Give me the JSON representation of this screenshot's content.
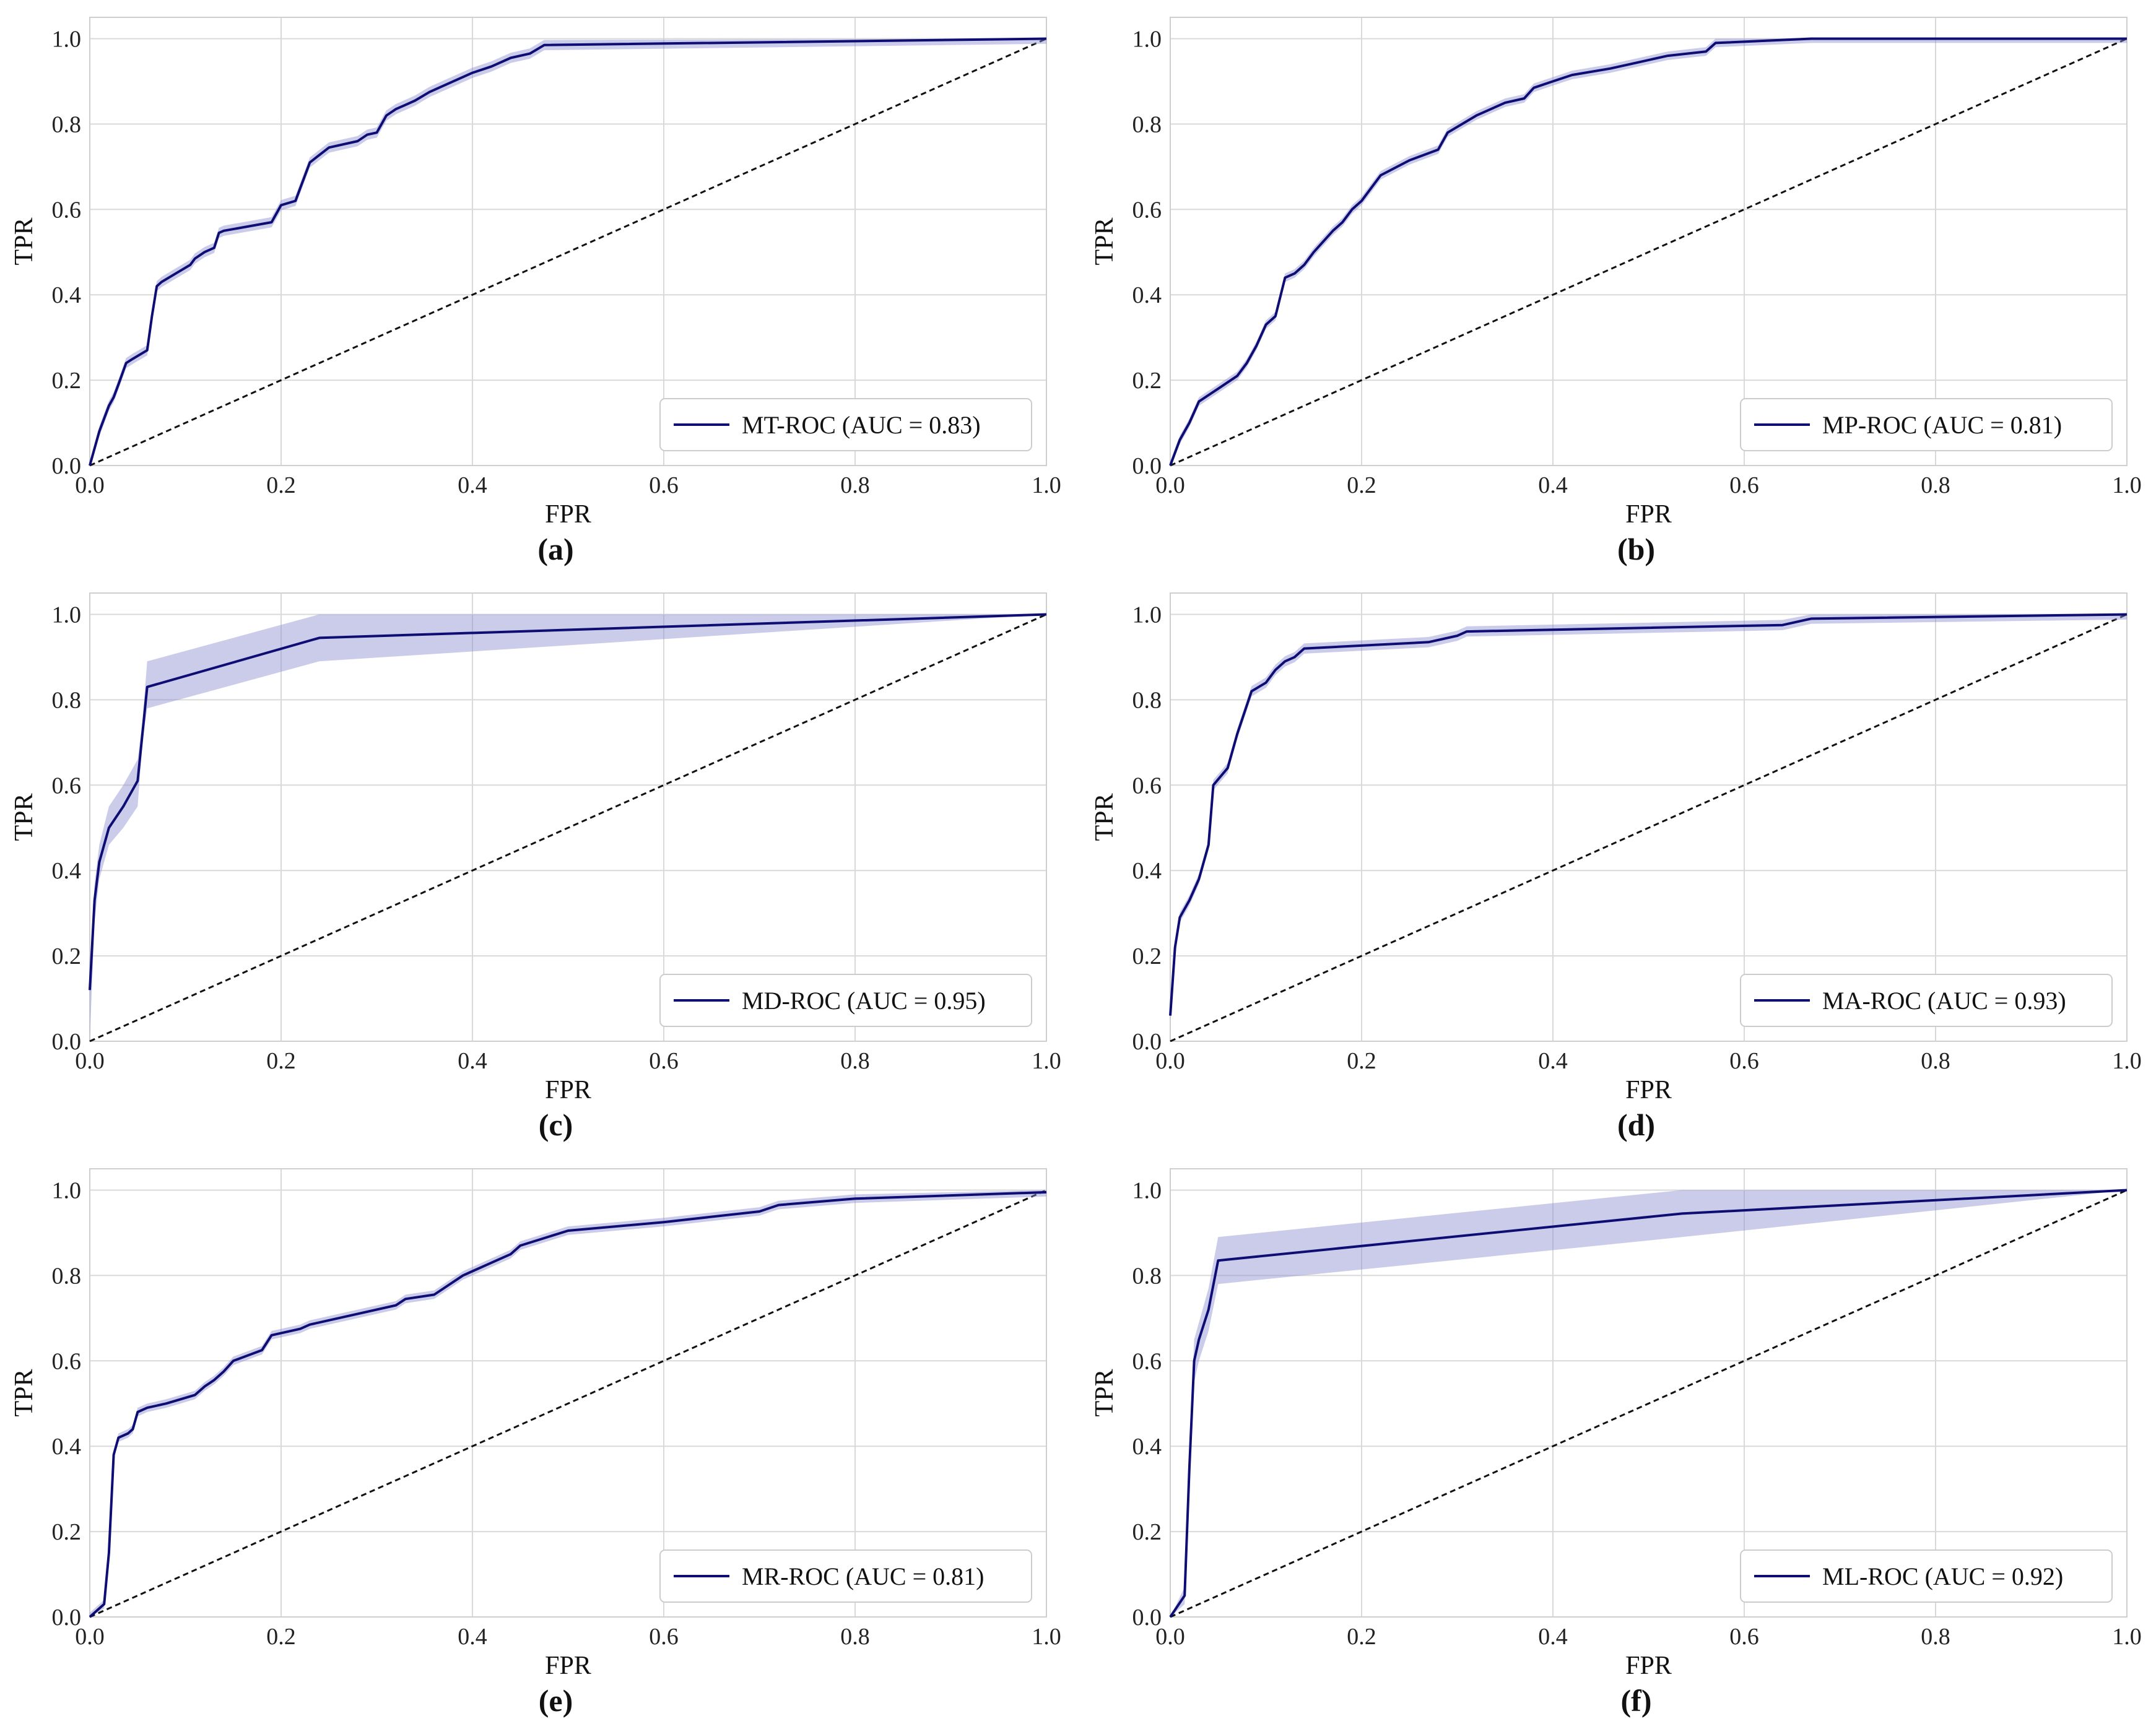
{
  "colors": {
    "line": "#0d0d73",
    "band": "#8c8cd1",
    "diagonal": "#111111"
  },
  "chart_data": [
    {
      "type": "line",
      "caption": "(a)",
      "xlabel": "FPR",
      "ylabel": "TPR",
      "xlim": [
        0,
        1
      ],
      "ylim": [
        0,
        1.05
      ],
      "grid": true,
      "legend_position": "lower-right",
      "xticks": [
        "0.0",
        "0.2",
        "0.4",
        "0.6",
        "0.8",
        "1.0"
      ],
      "yticks": [
        "0.0",
        "0.2",
        "0.4",
        "0.6",
        "0.8",
        "1.0"
      ],
      "series": [
        {
          "name": "MT-ROC (AUC = 0.83)",
          "x": [
            0,
            0.01,
            0.02,
            0.025,
            0.03,
            0.038,
            0.045,
            0.06,
            0.065,
            0.07,
            0.075,
            0.09,
            0.105,
            0.11,
            0.12,
            0.13,
            0.135,
            0.14,
            0.19,
            0.2,
            0.215,
            0.22,
            0.23,
            0.25,
            0.28,
            0.29,
            0.3,
            0.31,
            0.32,
            0.33,
            0.34,
            0.355,
            0.37,
            0.4,
            0.42,
            0.44,
            0.46,
            0.475,
            1.0
          ],
          "y": [
            0,
            0.08,
            0.14,
            0.16,
            0.19,
            0.24,
            0.25,
            0.27,
            0.35,
            0.42,
            0.43,
            0.45,
            0.47,
            0.485,
            0.5,
            0.51,
            0.545,
            0.55,
            0.57,
            0.61,
            0.62,
            0.65,
            0.71,
            0.745,
            0.76,
            0.775,
            0.78,
            0.82,
            0.835,
            0.845,
            0.855,
            0.875,
            0.89,
            0.92,
            0.935,
            0.955,
            0.965,
            0.985,
            1.0
          ],
          "band": 0.012
        }
      ]
    },
    {
      "type": "line",
      "caption": "(b)",
      "xlabel": "FPR",
      "ylabel": "TPR",
      "xlim": [
        0,
        1
      ],
      "ylim": [
        0,
        1.05
      ],
      "grid": true,
      "legend_position": "lower-right",
      "xticks": [
        "0.0",
        "0.2",
        "0.4",
        "0.6",
        "0.8",
        "1.0"
      ],
      "yticks": [
        "0.0",
        "0.2",
        "0.4",
        "0.6",
        "0.8",
        "1.0"
      ],
      "series": [
        {
          "name": "MP-ROC (AUC = 0.81)",
          "x": [
            0,
            0.01,
            0.02,
            0.03,
            0.05,
            0.07,
            0.08,
            0.09,
            0.1,
            0.11,
            0.12,
            0.13,
            0.14,
            0.15,
            0.17,
            0.18,
            0.19,
            0.2,
            0.21,
            0.22,
            0.25,
            0.28,
            0.29,
            0.32,
            0.33,
            0.35,
            0.37,
            0.38,
            0.4,
            0.42,
            0.46,
            0.49,
            0.52,
            0.56,
            0.57,
            0.67,
            1.0
          ],
          "y": [
            0,
            0.06,
            0.1,
            0.15,
            0.18,
            0.21,
            0.24,
            0.28,
            0.33,
            0.35,
            0.44,
            0.45,
            0.47,
            0.5,
            0.55,
            0.57,
            0.6,
            0.62,
            0.65,
            0.68,
            0.715,
            0.74,
            0.78,
            0.82,
            0.83,
            0.85,
            0.86,
            0.885,
            0.9,
            0.915,
            0.93,
            0.945,
            0.96,
            0.97,
            0.99,
            1.0,
            1.0
          ],
          "band": 0.01
        }
      ]
    },
    {
      "type": "line",
      "caption": "(c)",
      "xlabel": "FPR",
      "ylabel": "TPR",
      "xlim": [
        0,
        1
      ],
      "ylim": [
        0,
        1.05
      ],
      "grid": true,
      "legend_position": "lower-right",
      "xticks": [
        "0.0",
        "0.2",
        "0.4",
        "0.6",
        "0.8",
        "1.0"
      ],
      "yticks": [
        "0.0",
        "0.2",
        "0.4",
        "0.6",
        "0.8",
        "1.0"
      ],
      "series": [
        {
          "name": "MD-ROC (AUC = 0.95)",
          "x": [
            0,
            0.005,
            0.01,
            0.02,
            0.035,
            0.05,
            0.055,
            0.06,
            0.24,
            1.0
          ],
          "y": [
            0.12,
            0.33,
            0.42,
            0.5,
            0.55,
            0.61,
            0.72,
            0.83,
            0.945,
            1.0
          ],
          "band_lower": [
            0.0,
            0.28,
            0.38,
            0.46,
            0.5,
            0.55,
            0.7,
            0.78,
            0.89,
            1.0
          ],
          "band_upper": [
            0.18,
            0.37,
            0.46,
            0.55,
            0.6,
            0.66,
            0.75,
            0.89,
            1.0,
            1.0
          ]
        }
      ]
    },
    {
      "type": "line",
      "caption": "(d)",
      "xlabel": "FPR",
      "ylabel": "TPR",
      "xlim": [
        0,
        1
      ],
      "ylim": [
        0,
        1.05
      ],
      "grid": true,
      "legend_position": "lower-right",
      "xticks": [
        "0.0",
        "0.2",
        "0.4",
        "0.6",
        "0.8",
        "1.0"
      ],
      "yticks": [
        "0.0",
        "0.2",
        "0.4",
        "0.6",
        "0.8",
        "1.0"
      ],
      "series": [
        {
          "name": "MA-ROC (AUC = 0.93)",
          "x": [
            0,
            0.005,
            0.01,
            0.02,
            0.03,
            0.04,
            0.045,
            0.06,
            0.07,
            0.085,
            0.1,
            0.11,
            0.12,
            0.13,
            0.14,
            0.27,
            0.3,
            0.31,
            0.64,
            0.67,
            1.0
          ],
          "y": [
            0.06,
            0.22,
            0.29,
            0.33,
            0.38,
            0.46,
            0.6,
            0.64,
            0.72,
            0.82,
            0.84,
            0.87,
            0.89,
            0.9,
            0.92,
            0.935,
            0.95,
            0.96,
            0.975,
            0.99,
            1.0
          ],
          "band": 0.012
        }
      ]
    },
    {
      "type": "line",
      "caption": "(e)",
      "xlabel": "FPR",
      "ylabel": "TPR",
      "xlim": [
        0,
        1
      ],
      "ylim": [
        0,
        1.05
      ],
      "grid": true,
      "legend_position": "lower-right",
      "xticks": [
        "0.0",
        "0.2",
        "0.4",
        "0.6",
        "0.8",
        "1.0"
      ],
      "yticks": [
        "0.0",
        "0.2",
        "0.4",
        "0.6",
        "0.8",
        "1.0"
      ],
      "series": [
        {
          "name": "MR-ROC (AUC = 0.81)",
          "x": [
            0,
            0.015,
            0.02,
            0.025,
            0.03,
            0.04,
            0.045,
            0.05,
            0.06,
            0.08,
            0.11,
            0.12,
            0.13,
            0.14,
            0.15,
            0.18,
            0.19,
            0.22,
            0.23,
            0.32,
            0.33,
            0.36,
            0.37,
            0.39,
            0.4,
            0.42,
            0.44,
            0.45,
            0.5,
            0.6,
            0.7,
            0.72,
            0.8,
            1.0
          ],
          "y": [
            0,
            0.03,
            0.15,
            0.38,
            0.42,
            0.43,
            0.44,
            0.48,
            0.49,
            0.5,
            0.52,
            0.54,
            0.555,
            0.575,
            0.6,
            0.625,
            0.66,
            0.675,
            0.685,
            0.73,
            0.745,
            0.755,
            0.77,
            0.8,
            0.81,
            0.83,
            0.85,
            0.87,
            0.905,
            0.925,
            0.95,
            0.965,
            0.98,
            0.995
          ],
          "band": 0.01
        }
      ]
    },
    {
      "type": "line",
      "caption": "(f)",
      "xlabel": "FPR",
      "ylabel": "TPR",
      "xlim": [
        0,
        1
      ],
      "ylim": [
        0,
        1.05
      ],
      "grid": true,
      "legend_position": "lower-right",
      "xticks": [
        "0.0",
        "0.2",
        "0.4",
        "0.6",
        "0.8",
        "1.0"
      ],
      "yticks": [
        "0.0",
        "0.2",
        "0.4",
        "0.6",
        "0.8",
        "1.0"
      ],
      "series": [
        {
          "name": "ML-ROC (AUC = 0.92)",
          "x": [
            0,
            0.015,
            0.02,
            0.025,
            0.03,
            0.04,
            0.05,
            0.535,
            1.0
          ],
          "y": [
            0,
            0.05,
            0.35,
            0.6,
            0.65,
            0.72,
            0.835,
            0.945,
            1.0
          ],
          "band_lower": [
            0,
            0.03,
            0.3,
            0.55,
            0.6,
            0.67,
            0.78,
            0.89,
            1.0
          ],
          "band_upper": [
            0,
            0.07,
            0.4,
            0.65,
            0.69,
            0.77,
            0.89,
            1.0,
            1.0
          ]
        }
      ]
    }
  ]
}
